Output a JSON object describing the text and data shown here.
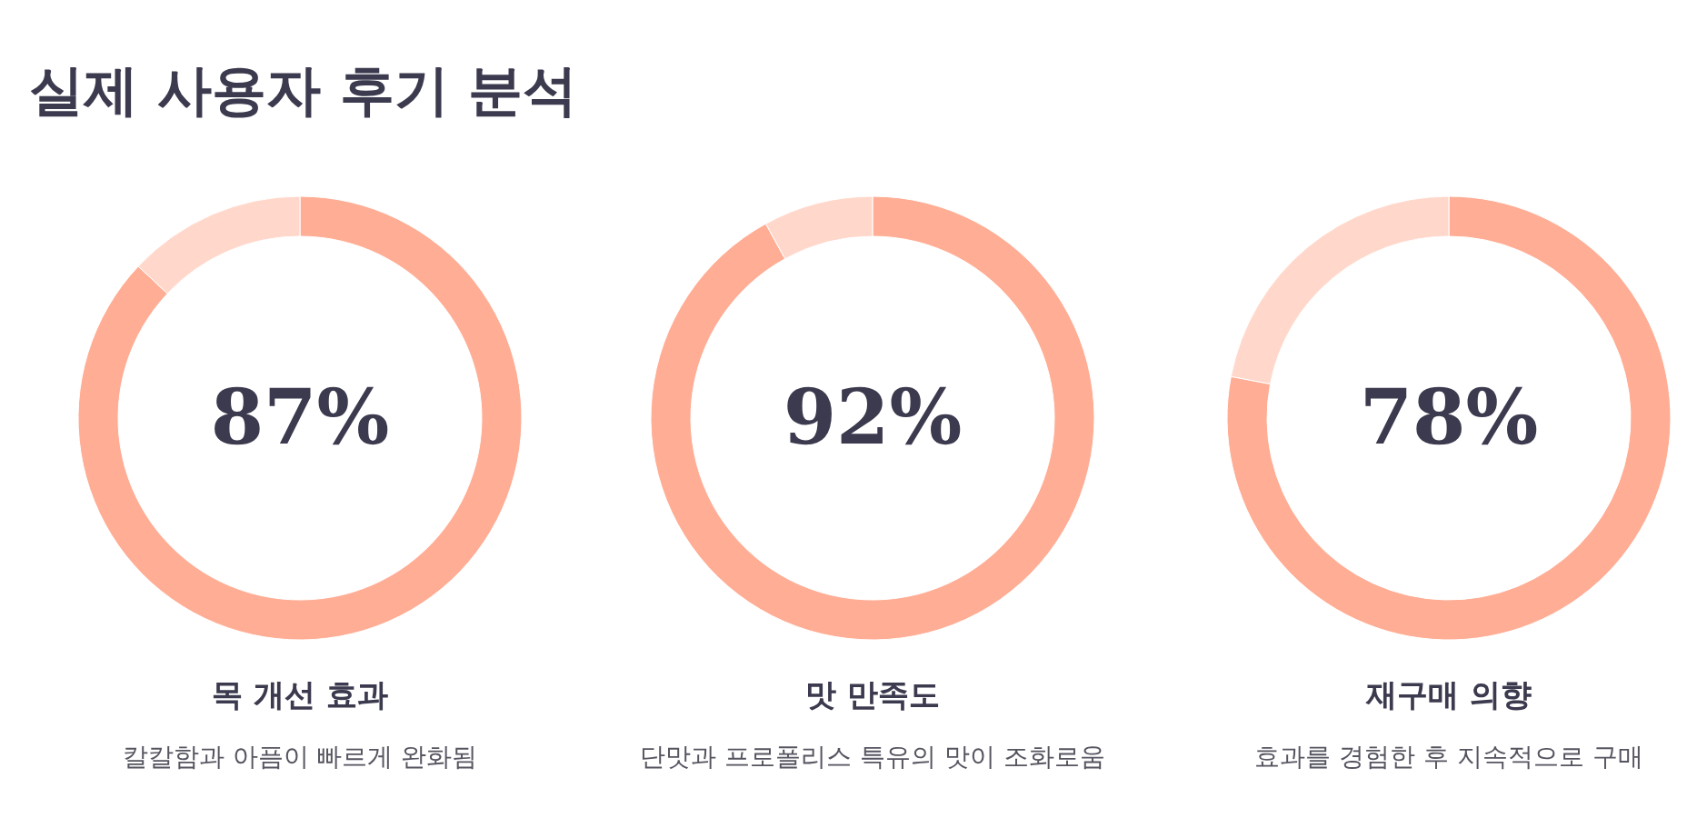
{
  "chart_data": [
    {
      "type": "other",
      "title": "실제 사용자 후기 분석"
    },
    {
      "type": "donut",
      "title": "목 개선 효과",
      "subtitle": "칼칼함과 아픔이 빠르게 완화됨",
      "categories": [
        null,
        null
      ],
      "values": [
        87,
        13
      ],
      "colors": [
        "#ffad94",
        "#ffd8cb"
      ],
      "value_labels": [
        "87%",
        null
      ]
    },
    {
      "type": "donut",
      "title": "맛 만족도",
      "subtitle": "단맛과 프로폴리스 특유의 맛이 조화로움",
      "categories": [
        null,
        null
      ],
      "values": [
        92,
        8
      ],
      "colors": [
        "#ffad94",
        "#ffd8cb"
      ],
      "value_labels": [
        "92%",
        null
      ]
    },
    {
      "type": "donut",
      "title": "재구매 의향",
      "subtitle": "효과를 경험한 후 지속적으로 구매",
      "categories": [
        null,
        null
      ],
      "values": [
        78,
        22
      ],
      "colors": [
        "#ffad94",
        "#ffd8cb"
      ],
      "value_labels": [
        "78%",
        null
      ]
    }
  ]
}
